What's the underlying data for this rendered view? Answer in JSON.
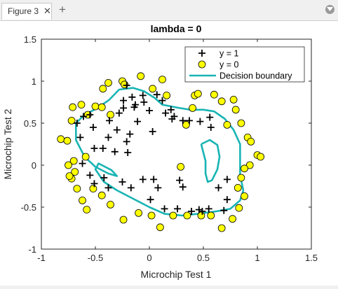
{
  "window": {
    "tab_title": "Figure 3",
    "close_glyph": "✕",
    "add_tab_glyph": "+",
    "menu_icon": "chevron-down-icon"
  },
  "chart_data": {
    "type": "scatter",
    "title": "lambda = 0",
    "xlabel": "Microchip Test 1",
    "ylabel": "Microchip Test 2",
    "xlim": [
      -1,
      1.5
    ],
    "ylim": [
      -1,
      1.5
    ],
    "xticks": [
      -1,
      -0.5,
      0,
      0.5,
      1,
      1.5
    ],
    "yticks": [
      -1,
      -0.5,
      0,
      0.5,
      1,
      1.5
    ],
    "xtick_labels": [
      "-1",
      "-0.5",
      "0",
      "0.5",
      "1",
      "1.5"
    ],
    "ytick_labels": [
      "-1",
      "-0.5",
      "0",
      "0.5",
      "1",
      "1.5"
    ],
    "grid": false,
    "legend_position": "top-right",
    "legend": [
      {
        "label": "y = 1",
        "marker": "plus"
      },
      {
        "label": "y = 0",
        "marker": "circle"
      },
      {
        "label": "Decision boundary",
        "marker": "line"
      }
    ],
    "colors": {
      "positive": "#000000",
      "negative_fill": "#ffff00",
      "boundary": "#19b4b4"
    },
    "series": [
      {
        "name": "y = 1",
        "points": [
          [
            -0.61,
            0.58
          ],
          [
            -0.55,
            0.6
          ],
          [
            -0.67,
            0.5
          ],
          [
            -0.52,
            0.45
          ],
          [
            -0.37,
            0.53
          ],
          [
            -0.51,
            0.2
          ],
          [
            -0.43,
            0.2
          ],
          [
            -0.38,
            0.33
          ],
          [
            -0.64,
            0.33
          ],
          [
            -0.62,
            0.02
          ],
          [
            -0.55,
            -0.12
          ],
          [
            -0.51,
            -0.22
          ],
          [
            -0.42,
            -0.15
          ],
          [
            -0.38,
            -0.27
          ],
          [
            -0.25,
            -0.2
          ],
          [
            -0.17,
            -0.27
          ],
          [
            -0.06,
            -0.17
          ],
          [
            0.04,
            -0.17
          ],
          [
            0.08,
            -0.27
          ],
          [
            0.31,
            -0.26
          ],
          [
            0.28,
            -0.18
          ],
          [
            0.01,
            -0.41
          ],
          [
            0.14,
            -0.52
          ],
          [
            0.26,
            -0.52
          ],
          [
            0.39,
            -0.55
          ],
          [
            0.46,
            -0.53
          ],
          [
            0.49,
            -0.55
          ],
          [
            0.55,
            -0.52
          ],
          [
            0.69,
            -0.54
          ],
          [
            0.72,
            -0.41
          ],
          [
            0.64,
            -0.27
          ],
          [
            0.72,
            -0.17
          ],
          [
            0.57,
            0.45
          ],
          [
            0.56,
            0.57
          ],
          [
            0.47,
            0.52
          ],
          [
            0.37,
            0.53
          ],
          [
            0.31,
            0.53
          ],
          [
            0.21,
            0.55
          ],
          [
            0.23,
            0.58
          ],
          [
            0.0,
            0.65
          ],
          [
            -0.06,
            0.83
          ],
          [
            -0.16,
            0.81
          ],
          [
            -0.21,
            0.95
          ],
          [
            -0.24,
            0.77
          ],
          [
            -0.14,
            0.69
          ],
          [
            -0.11,
            0.52
          ],
          [
            -0.18,
            0.37
          ],
          [
            -0.21,
            0.28
          ],
          [
            -0.2,
            0.15
          ],
          [
            -0.3,
            0.42
          ],
          [
            -0.05,
            0.75
          ],
          [
            -0.13,
            0.72
          ],
          [
            -0.28,
            0.62
          ],
          [
            -0.24,
            0.68
          ],
          [
            0.03,
            0.4
          ],
          [
            0.12,
            0.77
          ],
          [
            0.07,
            0.84
          ],
          [
            0.15,
            0.62
          ],
          [
            0.2,
            0.66
          ],
          [
            -0.32,
            0.16
          ]
        ]
      },
      {
        "name": "y = 0",
        "points": [
          [
            -0.82,
            0.31
          ],
          [
            -0.76,
            0.29
          ],
          [
            -0.72,
            0.53
          ],
          [
            -0.71,
            0.69
          ],
          [
            -0.63,
            0.72
          ],
          [
            -0.57,
            0.6
          ],
          [
            -0.43,
            0.91
          ],
          [
            -0.5,
            0.7
          ],
          [
            -0.38,
            0.98
          ],
          [
            -0.25,
            1.0
          ],
          [
            -0.08,
            1.06
          ],
          [
            0.03,
            0.91
          ],
          [
            0.12,
            1.02
          ],
          [
            0.16,
            0.83
          ],
          [
            0.42,
            0.83
          ],
          [
            0.4,
            0.68
          ],
          [
            0.45,
            0.85
          ],
          [
            0.6,
            0.84
          ],
          [
            0.67,
            0.76
          ],
          [
            0.78,
            0.78
          ],
          [
            0.8,
            0.66
          ],
          [
            0.72,
            0.48
          ],
          [
            0.85,
            0.5
          ],
          [
            0.91,
            0.33
          ],
          [
            0.94,
            0.28
          ],
          [
            1.0,
            0.12
          ],
          [
            1.03,
            0.1
          ],
          [
            0.93,
            0.0
          ],
          [
            0.88,
            -0.04
          ],
          [
            0.85,
            -0.15
          ],
          [
            0.82,
            -0.27
          ],
          [
            0.88,
            -0.37
          ],
          [
            0.83,
            -0.51
          ],
          [
            0.77,
            -0.64
          ],
          [
            0.67,
            -0.75
          ],
          [
            0.57,
            -0.6
          ],
          [
            0.48,
            -0.6
          ],
          [
            0.35,
            -0.6
          ],
          [
            0.22,
            -0.6
          ],
          [
            0.1,
            -0.74
          ],
          [
            0.02,
            -0.6
          ],
          [
            -0.1,
            -0.57
          ],
          [
            -0.24,
            -0.65
          ],
          [
            -0.36,
            -0.47
          ],
          [
            -0.44,
            -0.36
          ],
          [
            -0.52,
            -0.28
          ],
          [
            -0.58,
            -0.53
          ],
          [
            -0.62,
            -0.42
          ],
          [
            -0.67,
            -0.28
          ],
          [
            -0.72,
            -0.16
          ],
          [
            -0.69,
            -0.08
          ],
          [
            -0.74,
            -0.13
          ],
          [
            -0.7,
            0.05
          ],
          [
            -0.75,
            0.0
          ],
          [
            -0.59,
            0.1
          ],
          [
            -0.44,
            0.69
          ],
          [
            -0.36,
            0.6
          ],
          [
            -0.23,
            0.96
          ],
          [
            0.34,
            0.48
          ],
          [
            0.29,
            -0.02
          ]
        ]
      }
    ],
    "boundary_xy": [
      [
        -0.37,
        0.78
      ],
      [
        -0.28,
        0.9
      ],
      [
        -0.15,
        0.92
      ],
      [
        -0.05,
        0.88
      ],
      [
        0.05,
        0.8
      ],
      [
        0.12,
        0.72
      ],
      [
        0.2,
        0.7
      ],
      [
        0.28,
        0.68
      ],
      [
        0.38,
        0.66
      ],
      [
        0.5,
        0.66
      ],
      [
        0.6,
        0.64
      ],
      [
        0.7,
        0.55
      ],
      [
        0.78,
        0.42
      ],
      [
        0.84,
        0.25
      ],
      [
        0.84,
        0.05
      ],
      [
        0.84,
        -0.12
      ],
      [
        0.87,
        -0.3
      ],
      [
        0.84,
        -0.42
      ],
      [
        0.75,
        -0.52
      ],
      [
        0.62,
        -0.55
      ],
      [
        0.45,
        -0.58
      ],
      [
        0.3,
        -0.6
      ],
      [
        0.14,
        -0.58
      ],
      [
        0.0,
        -0.5
      ],
      [
        -0.15,
        -0.4
      ],
      [
        -0.3,
        -0.3
      ],
      [
        -0.42,
        -0.2
      ],
      [
        -0.5,
        -0.05
      ],
      [
        -0.47,
        0.02
      ],
      [
        -0.35,
        -0.06
      ],
      [
        -0.3,
        -0.13
      ],
      [
        -0.38,
        -0.1
      ],
      [
        -0.5,
        -0.02
      ],
      [
        -0.6,
        0.1
      ],
      [
        -0.68,
        0.3
      ],
      [
        -0.68,
        0.5
      ],
      [
        -0.6,
        0.6
      ],
      [
        -0.48,
        0.68
      ],
      [
        -0.37,
        0.78
      ]
    ],
    "boundary_loop2_xy": [
      [
        0.48,
        0.25
      ],
      [
        0.56,
        0.3
      ],
      [
        0.63,
        0.24
      ],
      [
        0.65,
        0.1
      ],
      [
        0.63,
        -0.05
      ],
      [
        0.58,
        -0.18
      ],
      [
        0.54,
        -0.2
      ],
      [
        0.52,
        -0.1
      ],
      [
        0.52,
        0.05
      ],
      [
        0.5,
        0.15
      ],
      [
        0.48,
        0.25
      ]
    ]
  }
}
